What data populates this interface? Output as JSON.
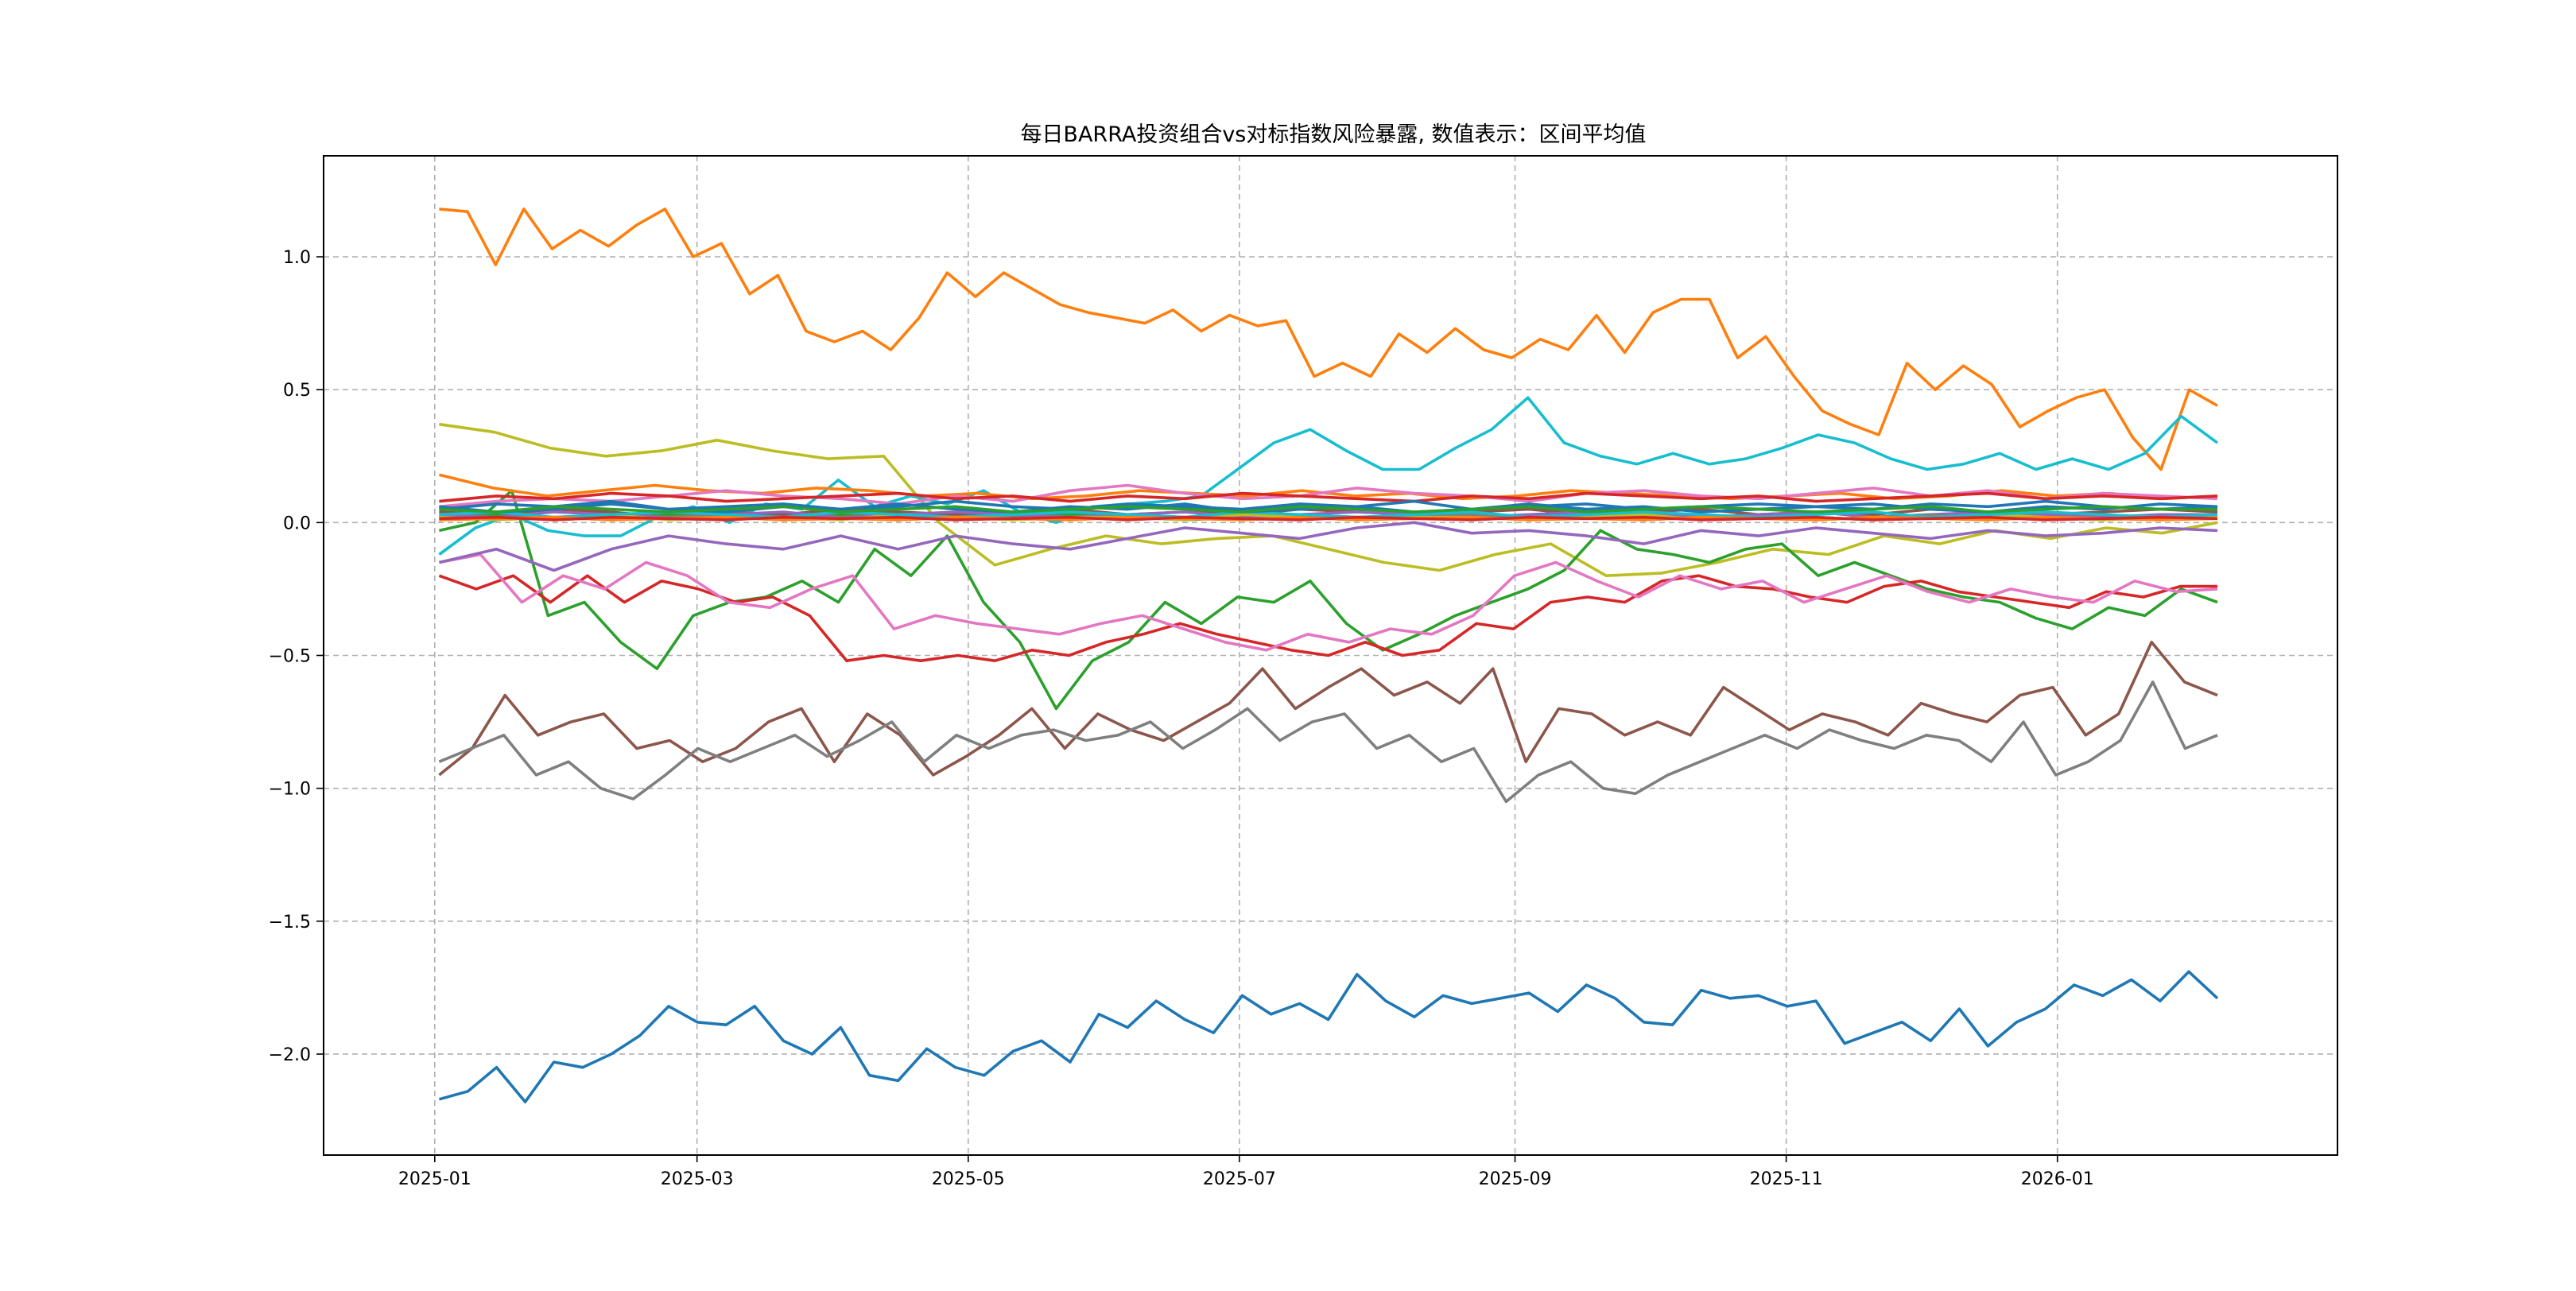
{
  "chart_data": {
    "type": "line",
    "title": "每日BARRA投资组合vs对标指数风险暴露, 数值表示：区间平均值",
    "xlabel": "",
    "ylabel": "",
    "x_start": "2025-01-02",
    "x_end": "2026-02-06",
    "xlim": [
      "2024-12-07",
      "2026-03-05"
    ],
    "ylim": [
      -2.38,
      1.38
    ],
    "xticks": [
      "2025-01",
      "2025-03",
      "2025-05",
      "2025-07",
      "2025-09",
      "2025-11",
      "2026-01"
    ],
    "xtick_dates": [
      "2025-01-01",
      "2025-03-01",
      "2025-05-01",
      "2025-07-01",
      "2025-09-01",
      "2025-11-01",
      "2026-01-01"
    ],
    "yticks": [
      -2.0,
      -1.5,
      -1.0,
      -0.5,
      0.0,
      0.5,
      1.0
    ],
    "ytick_labels": [
      "−2.0",
      "−1.5",
      "−1.0",
      "−0.5",
      "0.0",
      "0.5",
      "1.0"
    ],
    "grid": true,
    "legend": "none",
    "series": [
      {
        "color": "#1f77b4",
        "values": [
          -2.17,
          -2.14,
          -2.05,
          -2.18,
          -2.03,
          -2.05,
          -2.0,
          -1.93,
          -1.82,
          -1.88,
          -1.89,
          -1.82,
          -1.95,
          -2.0,
          -1.9,
          -2.08,
          -2.1,
          -1.98,
          -2.05,
          -2.08,
          -1.99,
          -1.95,
          -2.03,
          -1.85,
          -1.9,
          -1.8,
          -1.87,
          -1.92,
          -1.78,
          -1.85,
          -1.81,
          -1.87,
          -1.7,
          -1.8,
          -1.86,
          -1.78,
          -1.81,
          -1.79,
          -1.77,
          -1.84,
          -1.74,
          -1.79,
          -1.88,
          -1.89,
          -1.76,
          -1.79,
          -1.78,
          -1.82,
          -1.8,
          -1.96,
          -1.92,
          -1.88,
          -1.95,
          -1.83,
          -1.97,
          -1.88,
          -1.83,
          -1.74,
          -1.78,
          -1.72,
          -1.8,
          -1.69,
          -1.79
        ]
      },
      {
        "color": "#ff7f0e",
        "values": [
          1.18,
          1.17,
          0.97,
          1.18,
          1.03,
          1.1,
          1.04,
          1.12,
          1.18,
          1.0,
          1.05,
          0.86,
          0.93,
          0.72,
          0.68,
          0.72,
          0.65,
          0.77,
          0.94,
          0.85,
          0.94,
          0.88,
          0.82,
          0.79,
          0.77,
          0.75,
          0.8,
          0.72,
          0.78,
          0.74,
          0.76,
          0.55,
          0.6,
          0.55,
          0.71,
          0.64,
          0.73,
          0.65,
          0.62,
          0.69,
          0.65,
          0.78,
          0.64,
          0.79,
          0.84,
          0.84,
          0.62,
          0.7,
          0.55,
          0.42,
          0.37,
          0.33,
          0.6,
          0.5,
          0.59,
          0.52,
          0.36,
          0.42,
          0.47,
          0.5,
          0.32,
          0.2,
          0.5,
          0.44
        ]
      },
      {
        "color": "#bcbd22",
        "values": [
          0.37,
          0.34,
          0.28,
          0.25,
          0.27,
          0.31,
          0.27,
          0.24,
          0.25,
          0.0,
          -0.16,
          -0.1,
          -0.05,
          -0.08,
          -0.06,
          -0.05,
          -0.1,
          -0.15,
          -0.18,
          -0.12,
          -0.08,
          -0.2,
          -0.19,
          -0.15,
          -0.1,
          -0.12,
          -0.05,
          -0.08,
          -0.03,
          -0.06,
          -0.02,
          -0.04,
          0.0
        ]
      },
      {
        "color": "#17becf",
        "values": [
          -0.12,
          -0.02,
          0.03,
          -0.03,
          -0.05,
          -0.05,
          0.02,
          0.06,
          0.0,
          0.07,
          0.05,
          0.16,
          0.06,
          0.1,
          0.07,
          0.12,
          0.04,
          0.0,
          0.06,
          0.07,
          0.08,
          0.1,
          0.2,
          0.3,
          0.35,
          0.27,
          0.2,
          0.2,
          0.28,
          0.35,
          0.47,
          0.3,
          0.25,
          0.22,
          0.26,
          0.22,
          0.24,
          0.28,
          0.33,
          0.3,
          0.24,
          0.2,
          0.22,
          0.26,
          0.2,
          0.24,
          0.2,
          0.26,
          0.4,
          0.3
        ]
      },
      {
        "color": "#2ca02c",
        "values": [
          -0.03,
          0.0,
          0.12,
          -0.35,
          -0.3,
          -0.45,
          -0.55,
          -0.35,
          -0.3,
          -0.28,
          -0.22,
          -0.3,
          -0.1,
          -0.2,
          -0.05,
          -0.3,
          -0.45,
          -0.7,
          -0.52,
          -0.45,
          -0.3,
          -0.38,
          -0.28,
          -0.3,
          -0.22,
          -0.38,
          -0.48,
          -0.42,
          -0.35,
          -0.3,
          -0.25,
          -0.18,
          -0.03,
          -0.1,
          -0.12,
          -0.15,
          -0.1,
          -0.08,
          -0.2,
          -0.15,
          -0.2,
          -0.25,
          -0.28,
          -0.3,
          -0.36,
          -0.4,
          -0.32,
          -0.35,
          -0.25,
          -0.3
        ]
      },
      {
        "color": "#d62728",
        "values": [
          -0.2,
          -0.25,
          -0.2,
          -0.3,
          -0.2,
          -0.3,
          -0.22,
          -0.25,
          -0.3,
          -0.28,
          -0.35,
          -0.52,
          -0.5,
          -0.52,
          -0.5,
          -0.52,
          -0.48,
          -0.5,
          -0.45,
          -0.42,
          -0.38,
          -0.42,
          -0.45,
          -0.48,
          -0.5,
          -0.45,
          -0.5,
          -0.48,
          -0.38,
          -0.4,
          -0.3,
          -0.28,
          -0.3,
          -0.22,
          -0.2,
          -0.24,
          -0.25,
          -0.28,
          -0.3,
          -0.24,
          -0.22,
          -0.26,
          -0.28,
          -0.3,
          -0.32,
          -0.26,
          -0.28,
          -0.24,
          -0.24
        ]
      },
      {
        "color": "#e377c2",
        "values": [
          -0.15,
          -0.12,
          -0.3,
          -0.2,
          -0.25,
          -0.15,
          -0.2,
          -0.3,
          -0.32,
          -0.25,
          -0.2,
          -0.4,
          -0.35,
          -0.38,
          -0.4,
          -0.42,
          -0.38,
          -0.35,
          -0.4,
          -0.45,
          -0.48,
          -0.42,
          -0.45,
          -0.4,
          -0.42,
          -0.35,
          -0.2,
          -0.15,
          -0.22,
          -0.28,
          -0.2,
          -0.25,
          -0.22,
          -0.3,
          -0.25,
          -0.2,
          -0.26,
          -0.3,
          -0.25,
          -0.28,
          -0.3,
          -0.22,
          -0.26,
          -0.25
        ]
      },
      {
        "color": "#9467bd",
        "values": [
          -0.15,
          -0.1,
          -0.18,
          -0.1,
          -0.05,
          -0.08,
          -0.1,
          -0.05,
          -0.1,
          -0.05,
          -0.08,
          -0.1,
          -0.06,
          -0.02,
          -0.04,
          -0.06,
          -0.02,
          0.0,
          -0.04,
          -0.03,
          -0.05,
          -0.08,
          -0.03,
          -0.05,
          -0.02,
          -0.04,
          -0.06,
          -0.03,
          -0.05,
          -0.04,
          -0.02,
          -0.03
        ]
      },
      {
        "color": "#8c564b",
        "values": [
          -0.95,
          -0.85,
          -0.65,
          -0.8,
          -0.75,
          -0.72,
          -0.85,
          -0.82,
          -0.9,
          -0.85,
          -0.75,
          -0.7,
          -0.9,
          -0.72,
          -0.8,
          -0.95,
          -0.88,
          -0.8,
          -0.7,
          -0.85,
          -0.72,
          -0.78,
          -0.82,
          -0.75,
          -0.68,
          -0.55,
          -0.7,
          -0.62,
          -0.55,
          -0.65,
          -0.6,
          -0.68,
          -0.55,
          -0.9,
          -0.7,
          -0.72,
          -0.8,
          -0.75,
          -0.8,
          -0.62,
          -0.7,
          -0.78,
          -0.72,
          -0.75,
          -0.8,
          -0.68,
          -0.72,
          -0.75,
          -0.65,
          -0.62,
          -0.8,
          -0.72,
          -0.45,
          -0.6,
          -0.65
        ]
      },
      {
        "color": "#7f7f7f",
        "values": [
          -0.9,
          -0.85,
          -0.8,
          -0.95,
          -0.9,
          -1.0,
          -1.04,
          -0.95,
          -0.85,
          -0.9,
          -0.85,
          -0.8,
          -0.88,
          -0.82,
          -0.75,
          -0.9,
          -0.8,
          -0.85,
          -0.8,
          -0.78,
          -0.82,
          -0.8,
          -0.75,
          -0.85,
          -0.78,
          -0.7,
          -0.82,
          -0.75,
          -0.72,
          -0.85,
          -0.8,
          -0.9,
          -0.85,
          -1.05,
          -0.95,
          -0.9,
          -1.0,
          -1.02,
          -0.95,
          -0.9,
          -0.85,
          -0.8,
          -0.85,
          -0.78,
          -0.82,
          -0.85,
          -0.8,
          -0.82,
          -0.9,
          -0.75,
          -0.95,
          -0.9,
          -0.82,
          -0.6,
          -0.85,
          -0.8
        ]
      },
      {
        "color": "#ff7f0e",
        "values": [
          0.18,
          0.13,
          0.1,
          0.12,
          0.14,
          0.12,
          0.11,
          0.13,
          0.12,
          0.1,
          0.11,
          0.09,
          0.1,
          0.12,
          0.11,
          0.1,
          0.12,
          0.1,
          0.11,
          0.09,
          0.1,
          0.12,
          0.11,
          0.1,
          0.09,
          0.1,
          0.11,
          0.09,
          0.1,
          0.12,
          0.1,
          0.11,
          0.09,
          0.1
        ]
      },
      {
        "color": "#e377c2",
        "values": [
          0.06,
          0.08,
          0.09,
          0.08,
          0.1,
          0.12,
          0.1,
          0.09,
          0.07,
          0.1,
          0.08,
          0.12,
          0.14,
          0.11,
          0.09,
          0.1,
          0.13,
          0.11,
          0.1,
          0.08,
          0.11,
          0.12,
          0.1,
          0.09,
          0.11,
          0.13,
          0.1,
          0.12,
          0.09,
          0.11,
          0.1,
          0.09
        ]
      },
      {
        "color": "#d62728",
        "values": [
          0.08,
          0.1,
          0.09,
          0.11,
          0.1,
          0.08,
          0.09,
          0.1,
          0.11,
          0.09,
          0.1,
          0.08,
          0.1,
          0.09,
          0.11,
          0.1,
          0.09,
          0.08,
          0.1,
          0.09,
          0.11,
          0.1,
          0.09,
          0.1,
          0.08,
          0.09,
          0.1,
          0.11,
          0.09,
          0.1,
          0.09,
          0.1
        ]
      },
      {
        "color": "#1f77b4",
        "values": [
          0.05,
          0.07,
          0.06,
          0.08,
          0.05,
          0.06,
          0.07,
          0.05,
          0.06,
          0.08,
          0.06,
          0.05,
          0.07,
          0.06,
          0.05,
          0.07,
          0.06,
          0.08,
          0.05,
          0.06,
          0.07,
          0.05,
          0.06,
          0.07,
          0.06,
          0.05,
          0.07,
          0.06,
          0.08,
          0.06,
          0.05,
          0.06
        ]
      },
      {
        "color": "#8c564b",
        "values": [
          0.04,
          0.03,
          0.05,
          0.04,
          0.02,
          0.04,
          0.03,
          0.05,
          0.04,
          0.03,
          0.04,
          0.05,
          0.03,
          0.04,
          0.03,
          0.05,
          0.04,
          0.03,
          0.04,
          0.05,
          0.03,
          0.04,
          0.05,
          0.03,
          0.04,
          0.03,
          0.05,
          0.04,
          0.03,
          0.04,
          0.05,
          0.04
        ]
      },
      {
        "color": "#2ca02c",
        "values": [
          0.02,
          0.03,
          0.01,
          0.02,
          0.03,
          0.02,
          0.01,
          0.03,
          0.02,
          0.01,
          0.02,
          0.03,
          0.02,
          0.01,
          0.02,
          0.03,
          0.02,
          0.02,
          0.01,
          0.03,
          0.02,
          0.01,
          0.02,
          0.03,
          0.02,
          0.01,
          0.02,
          0.02,
          0.03,
          0.01,
          0.02,
          0.02
        ]
      },
      {
        "color": "#9467bd",
        "values": [
          0.03,
          0.02,
          0.04,
          0.03,
          0.02,
          0.03,
          0.04,
          0.02,
          0.03,
          0.04,
          0.03,
          0.02,
          0.03,
          0.04,
          0.02,
          0.03,
          0.04,
          0.03,
          0.02,
          0.03,
          0.04,
          0.03,
          0.02,
          0.03,
          0.04,
          0.02,
          0.03,
          0.04,
          0.03,
          0.02,
          0.03,
          0.03
        ]
      },
      {
        "color": "#7f7f7f",
        "values": [
          0.01,
          0.02,
          0.02,
          0.01,
          0.02,
          0.03,
          0.01,
          0.02,
          0.01,
          0.02,
          0.02,
          0.01,
          0.03,
          0.02,
          0.01,
          0.02,
          0.01,
          0.02,
          0.03,
          0.01,
          0.02,
          0.01,
          0.02,
          0.02,
          0.01,
          0.02,
          0.03,
          0.01,
          0.02,
          0.01,
          0.02,
          0.02
        ]
      },
      {
        "color": "#bcbd22",
        "values": [
          0.02,
          0.01,
          0.02,
          0.03,
          0.01,
          0.02,
          0.02,
          0.01,
          0.03,
          0.02,
          0.01,
          0.02,
          0.02,
          0.01,
          0.03,
          0.02,
          0.01,
          0.02,
          0.02,
          0.01,
          0.02,
          0.03,
          0.01,
          0.02,
          0.02,
          0.01,
          0.02,
          0.03,
          0.02,
          0.01,
          0.02,
          0.02
        ]
      },
      {
        "color": "#17becf",
        "values": [
          0.03,
          0.04,
          0.02,
          0.03,
          0.04,
          0.03,
          0.02,
          0.04,
          0.03,
          0.02,
          0.03,
          0.04,
          0.03,
          0.02,
          0.04,
          0.03,
          0.02,
          0.03,
          0.04,
          0.02,
          0.03,
          0.04,
          0.03,
          0.02,
          0.03,
          0.04,
          0.02,
          0.03,
          0.04,
          0.03,
          0.02,
          0.03
        ]
      },
      {
        "color": "#ff7f0e",
        "values": [
          0.01,
          0.015,
          0.02,
          0.01,
          0.015,
          0.02,
          0.01,
          0.015,
          0.01,
          0.02,
          0.015,
          0.01,
          0.02,
          0.015,
          0.01,
          0.02,
          0.01,
          0.015,
          0.02,
          0.01,
          0.015,
          0.01,
          0.02,
          0.015,
          0.01,
          0.02,
          0.015,
          0.01,
          0.02,
          0.015,
          0.01,
          0.015
        ]
      },
      {
        "color": "#d62728",
        "values": [
          0.015,
          0.02,
          0.01,
          0.02,
          0.015,
          0.01,
          0.02,
          0.015,
          0.02,
          0.01,
          0.015,
          0.02,
          0.01,
          0.02,
          0.015,
          0.01,
          0.02,
          0.015,
          0.01,
          0.02,
          0.015,
          0.02,
          0.01,
          0.015,
          0.02,
          0.01,
          0.015,
          0.02,
          0.01,
          0.015,
          0.02,
          0.015
        ]
      },
      {
        "color": "#1f77b4",
        "values": [
          0.06,
          0.04,
          0.05,
          0.07,
          0.05,
          0.04,
          0.06,
          0.05,
          0.07,
          0.05,
          0.04,
          0.06,
          0.05,
          0.07,
          0.04,
          0.05,
          0.06,
          0.04,
          0.05,
          0.07,
          0.05,
          0.06,
          0.04,
          0.05,
          0.06,
          0.07,
          0.05,
          0.04,
          0.06,
          0.05,
          0.07,
          0.06
        ]
      },
      {
        "color": "#2ca02c",
        "values": [
          0.05,
          0.04,
          0.06,
          0.05,
          0.04,
          0.05,
          0.06,
          0.04,
          0.05,
          0.06,
          0.04,
          0.05,
          0.06,
          0.05,
          0.04,
          0.06,
          0.05,
          0.04,
          0.05,
          0.06,
          0.04,
          0.05,
          0.06,
          0.05,
          0.04,
          0.05,
          0.06,
          0.04,
          0.05,
          0.06,
          0.05,
          0.05
        ]
      }
    ]
  }
}
